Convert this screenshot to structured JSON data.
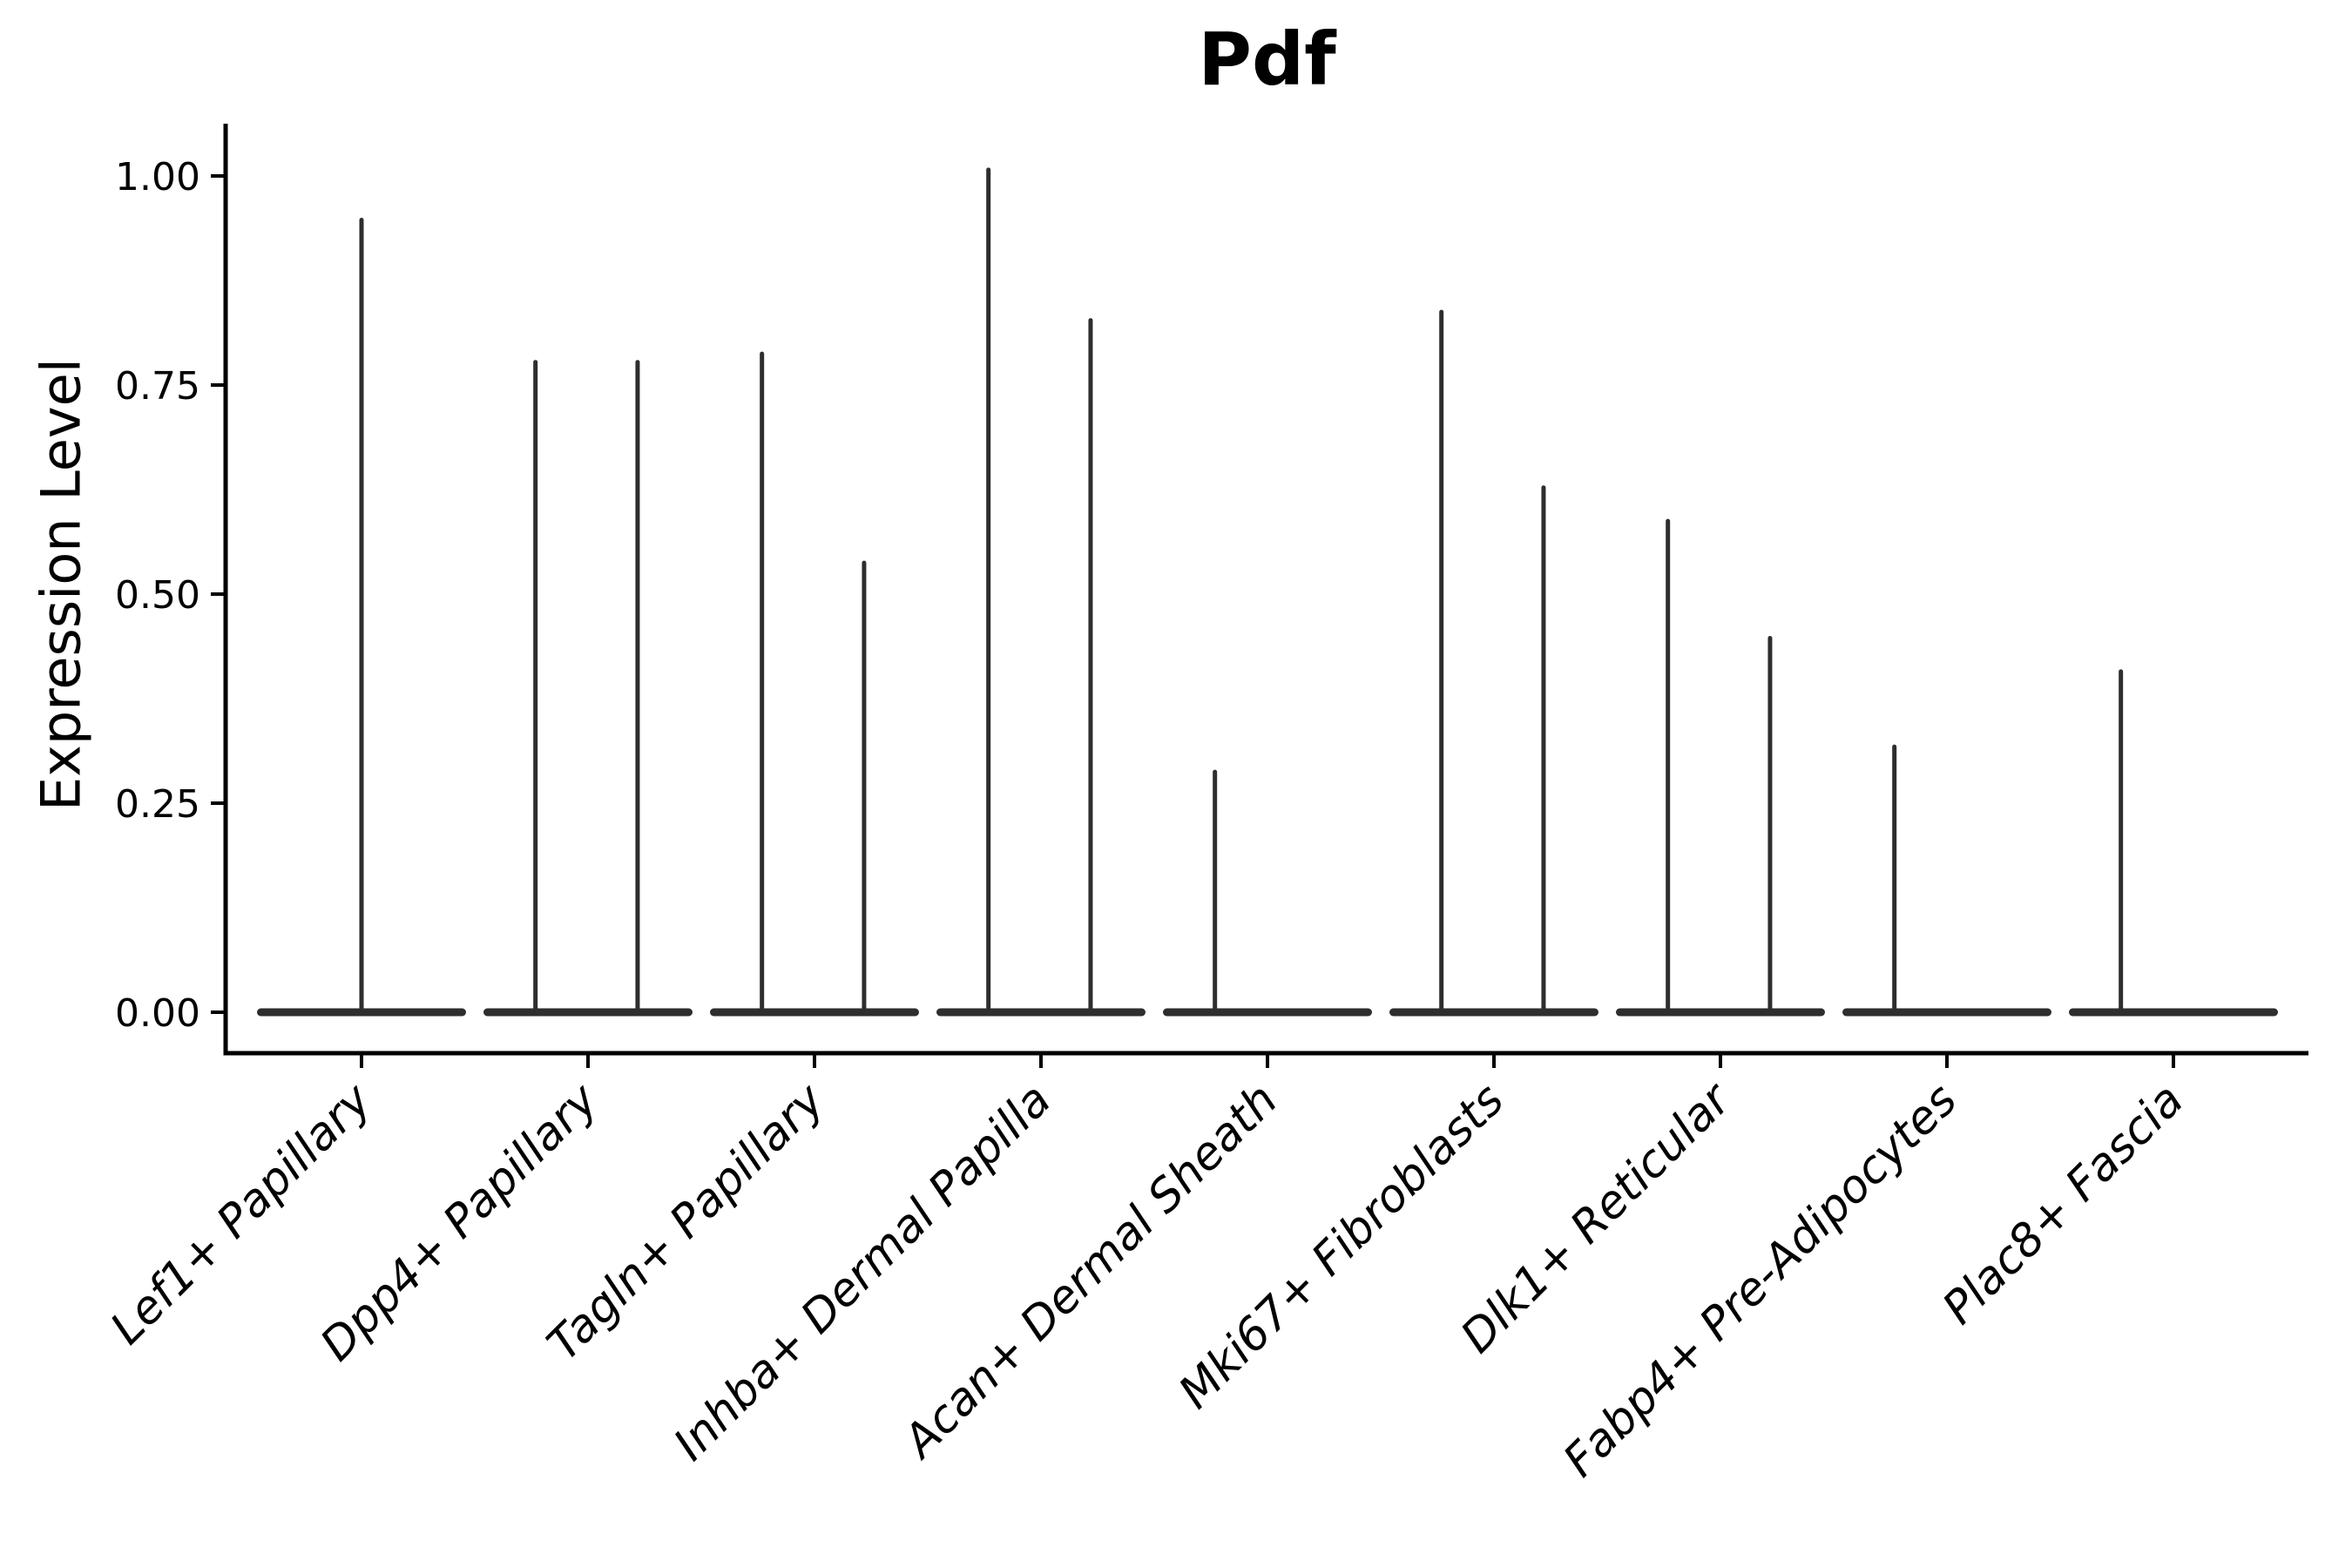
{
  "chart_data": {
    "type": "violin",
    "title": "Pdf",
    "xlabel": "",
    "ylabel": "Expression Level",
    "ylim": [
      -0.05,
      1.06
    ],
    "yticks": [
      0.0,
      0.25,
      0.5,
      0.75,
      1.0
    ],
    "ytick_labels": [
      "0.00",
      "0.25",
      "0.50",
      "0.75",
      "1.00"
    ],
    "grid": false,
    "legend": false,
    "baseline_value": 0.0,
    "categories": [
      "Lef1+ Papillary",
      "Dpp4+ Papillary",
      "Tagln+ Papillary",
      "Inhba+ Dermal Papilla",
      "Acan+ Dermal Sheath",
      "Mki67+ Fibroblasts",
      "Dlk1+ Reticular",
      "Fabp4+ Pre-Adipocytes",
      "Plac8+ Fascia"
    ],
    "violins": [
      {
        "category": "Lef1+ Papillary",
        "spikes": [
          {
            "offset": 0.0,
            "max": 0.95
          }
        ]
      },
      {
        "category": "Dpp4+ Papillary",
        "spikes": [
          {
            "offset": -0.232,
            "max": 0.78
          },
          {
            "offset": 0.219,
            "max": 0.78
          }
        ]
      },
      {
        "category": "Tagln+ Papillary",
        "spikes": [
          {
            "offset": -0.232,
            "max": 0.79
          },
          {
            "offset": 0.219,
            "max": 0.54
          }
        ]
      },
      {
        "category": "Inhba+ Dermal Papilla",
        "spikes": [
          {
            "offset": -0.232,
            "max": 1.01
          },
          {
            "offset": 0.219,
            "max": 0.83
          }
        ]
      },
      {
        "category": "Acan+ Dermal Sheath",
        "spikes": [
          {
            "offset": -0.232,
            "max": 0.29
          }
        ]
      },
      {
        "category": "Mki67+ Fibroblasts",
        "spikes": [
          {
            "offset": -0.232,
            "max": 0.84
          },
          {
            "offset": 0.219,
            "max": 0.63
          }
        ]
      },
      {
        "category": "Dlk1+ Reticular",
        "spikes": [
          {
            "offset": -0.232,
            "max": 0.59
          },
          {
            "offset": 0.219,
            "max": 0.45
          }
        ]
      },
      {
        "category": "Fabp4+ Pre-Adipocytes",
        "spikes": [
          {
            "offset": -0.232,
            "max": 0.32
          }
        ]
      },
      {
        "category": "Plac8+ Fascia",
        "spikes": [
          {
            "offset": -0.232,
            "max": 0.41
          }
        ]
      }
    ],
    "colors": {
      "violin": "#2e2e2e",
      "axis": "#000000",
      "background": "#ffffff"
    }
  }
}
